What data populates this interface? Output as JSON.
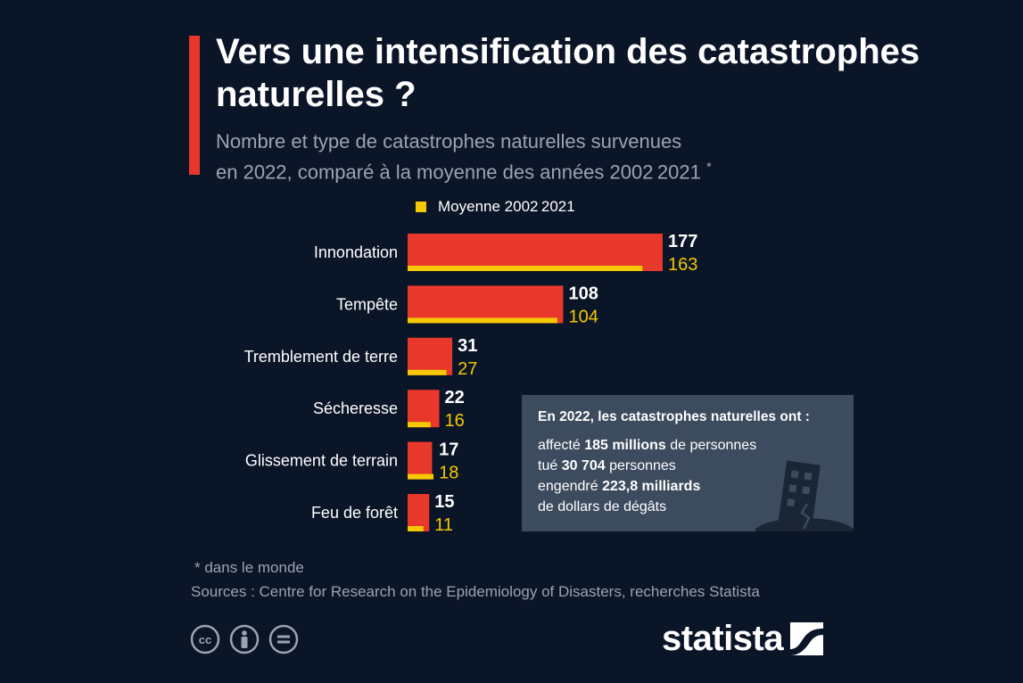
{
  "header": {
    "title": "Vers une intensification des catastrophes naturelles ?",
    "subtitle_line1": "Nombre et type de catastrophes naturelles survenues",
    "subtitle_line2": "en 2022, comparé à la moyenne des années 2002 2021",
    "subtitle_mark": "*"
  },
  "legend": {
    "label": "Moyenne 2002 2021",
    "color": "#f5c800"
  },
  "chart_data": {
    "type": "bar",
    "orientation": "horizontal",
    "categories": [
      "Innondation",
      "Tempête",
      "Tremblement de terre",
      "Sécheresse",
      "Glissement de terrain",
      "Feu de forêt"
    ],
    "series": [
      {
        "values": [
          177,
          108,
          31,
          22,
          17,
          15
        ],
        "color": "#e8372b"
      },
      {
        "name": "Moyenne 2002 2021",
        "values": [
          163,
          104,
          27,
          16,
          18,
          11
        ],
        "color": "#f5c800"
      }
    ],
    "xlim": [
      0,
      177
    ],
    "grid": false,
    "legend_position": "top"
  },
  "info_box": {
    "heading": "En 2022, les catastrophes naturelles ont :",
    "l1_pre": "affecté ",
    "l1_bold": "185 millions",
    "l1_post": " de personnes",
    "l2_pre": "tué ",
    "l2_bold": "30 704",
    "l2_post": " personnes",
    "l3_pre": "engendré ",
    "l3_bold": "223,8 milliards",
    "l4": "de dollars de dégâts",
    "icon": "collapsing-building-icon"
  },
  "footer": {
    "footnote": "* dans le monde",
    "sources": "Sources : Centre for Research on the Epidemiology of Disasters, recherches Statista",
    "cc_icons": [
      "cc-icon",
      "by-icon",
      "nd-icon"
    ],
    "logo": "statista"
  },
  "colors": {
    "background": "#0b1528",
    "accent": "#e8372b",
    "average": "#f5c800",
    "box": "#3c4b5e",
    "muted": "#9aa3b0"
  }
}
